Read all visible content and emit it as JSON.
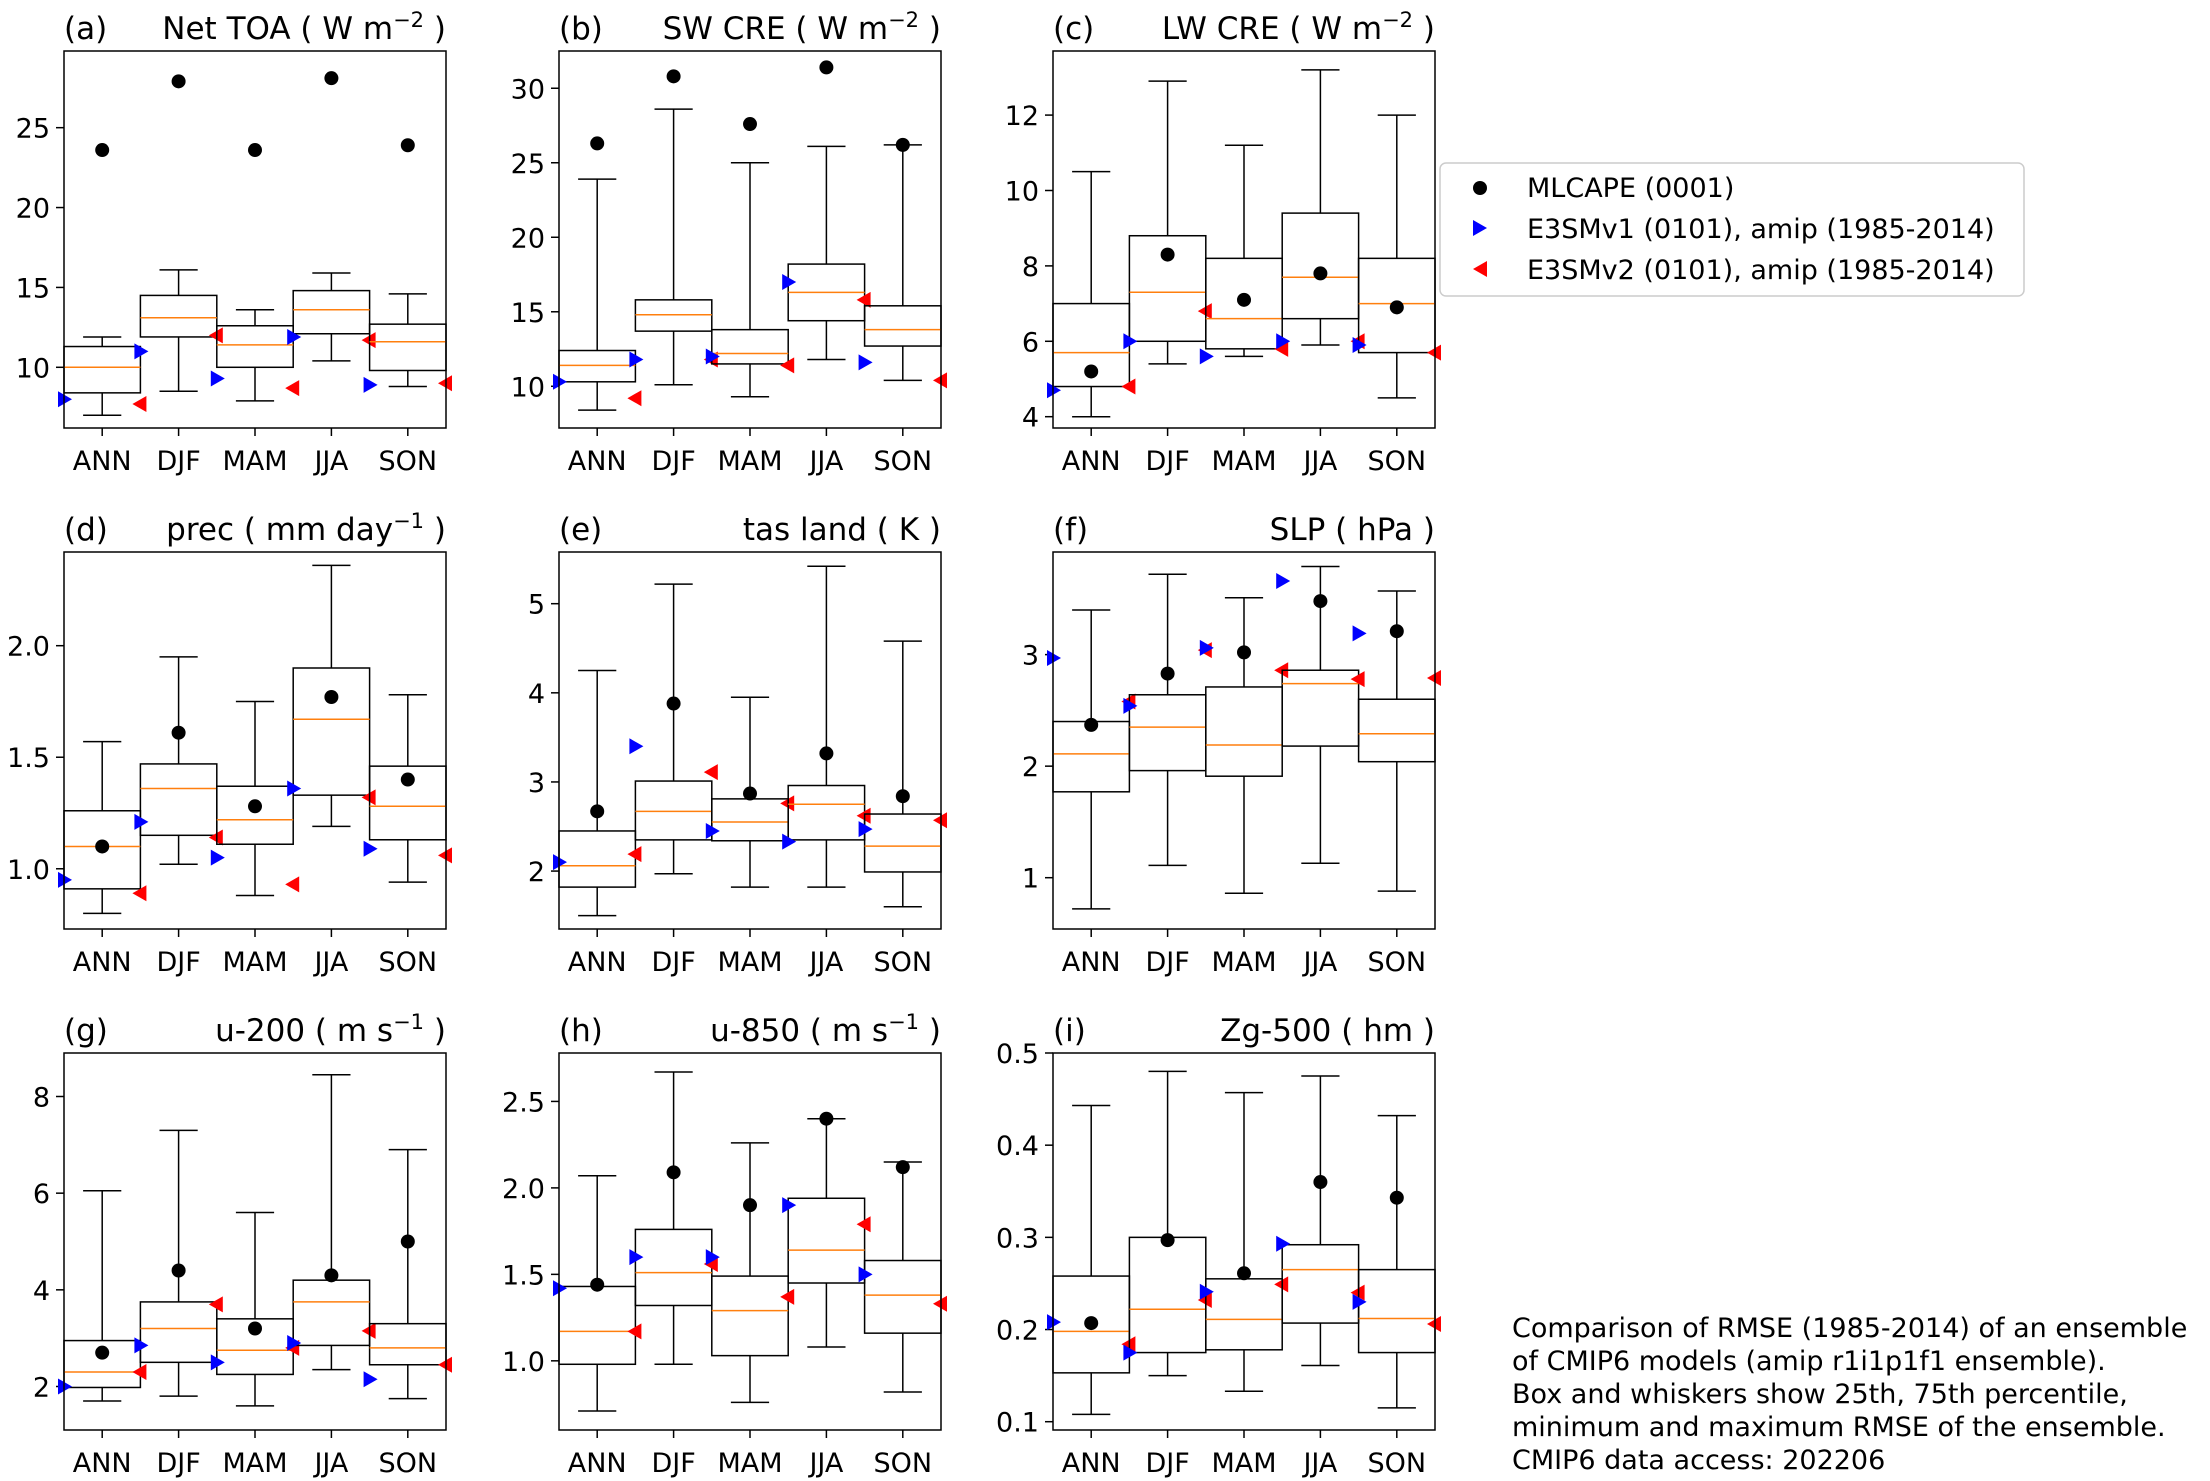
{
  "colors": {
    "mlcape": "#000000",
    "v1": "#0000ff",
    "v2": "#ff0000",
    "median": "#ff7f0e",
    "box": "#000000"
  },
  "legend": {
    "position": "right",
    "entries": [
      {
        "label": "MLCAPE (0001)",
        "marker": "circle",
        "color": "#000000"
      },
      {
        "label": "E3SMv1 (0101), amip (1985-2014)",
        "marker": "triangle-right",
        "color": "#0000ff"
      },
      {
        "label": "E3SMv2 (0101), amip (1985-2014)",
        "marker": "triangle-left",
        "color": "#ff0000"
      }
    ]
  },
  "note": [
    "Comparison of RMSE (1985-2014) of an ensemble",
    "of CMIP6 models (amip r1i1p1f1 ensemble).",
    "Box and whiskers show 25th, 75th percentile,",
    "minimum and maximum RMSE of the ensemble.",
    "CMIP6 data access: 202206"
  ],
  "chart_data": [
    {
      "type": "box",
      "letter": "(a)",
      "name": "Net TOA",
      "unit": "W m",
      "exp": "−2",
      "ylim": [
        6.2,
        29.8
      ],
      "yticks": [
        10,
        15,
        20,
        25
      ],
      "tickfmt": 0,
      "categories": [
        "ANN",
        "DJF",
        "MAM",
        "JJA",
        "SON"
      ],
      "box": [
        [
          7.0,
          8.4,
          10.0,
          11.3,
          11.9
        ],
        [
          8.5,
          11.9,
          13.1,
          14.5,
          16.1
        ],
        [
          7.9,
          10.0,
          11.4,
          12.6,
          13.6
        ],
        [
          10.4,
          12.1,
          13.6,
          14.8,
          15.9
        ],
        [
          8.8,
          9.8,
          11.6,
          12.7,
          14.6
        ]
      ],
      "mlcape": [
        23.6,
        27.9,
        23.6,
        28.1,
        23.9
      ],
      "v1": [
        8.0,
        11.0,
        9.3,
        11.9,
        8.9
      ],
      "v2": [
        7.7,
        12.0,
        8.7,
        11.7,
        9.0
      ]
    },
    {
      "type": "box",
      "letter": "(b)",
      "name": "SW CRE",
      "unit": "W m",
      "exp": "−2",
      "ylim": [
        7.2,
        32.5
      ],
      "yticks": [
        10,
        15,
        20,
        25,
        30
      ],
      "tickfmt": 0,
      "categories": [
        "ANN",
        "DJF",
        "MAM",
        "JJA",
        "SON"
      ],
      "box": [
        [
          8.4,
          10.3,
          11.4,
          12.4,
          23.9
        ],
        [
          10.1,
          13.7,
          14.8,
          15.8,
          28.6
        ],
        [
          9.3,
          11.5,
          12.2,
          13.8,
          25.0
        ],
        [
          11.8,
          14.4,
          16.3,
          18.2,
          26.1
        ],
        [
          10.4,
          12.7,
          13.8,
          15.4,
          26.2
        ]
      ],
      "mlcape": [
        26.3,
        30.8,
        27.6,
        31.4,
        26.2
      ],
      "v1": [
        10.3,
        11.8,
        12.0,
        17.0,
        11.6
      ],
      "v2": [
        9.2,
        11.8,
        11.4,
        15.8,
        10.4
      ]
    },
    {
      "type": "box",
      "letter": "(c)",
      "name": "LW CRE",
      "unit": "W m",
      "exp": "−2",
      "ylim": [
        3.7,
        13.7
      ],
      "yticks": [
        4,
        6,
        8,
        10,
        12
      ],
      "tickfmt": 0,
      "categories": [
        "ANN",
        "DJF",
        "MAM",
        "JJA",
        "SON"
      ],
      "box": [
        [
          4.0,
          4.8,
          5.7,
          7.0,
          10.5
        ],
        [
          5.4,
          6.0,
          7.3,
          8.8,
          12.9
        ],
        [
          5.6,
          5.8,
          6.6,
          8.2,
          11.2
        ],
        [
          5.9,
          6.6,
          7.7,
          9.4,
          13.2
        ],
        [
          4.5,
          5.7,
          7.0,
          8.2,
          12.0
        ]
      ],
      "mlcape": [
        5.2,
        8.3,
        7.1,
        7.8,
        6.9
      ],
      "v1": [
        4.7,
        6.0,
        5.6,
        6.0,
        5.9
      ],
      "v2": [
        4.8,
        6.8,
        5.8,
        6.0,
        5.7
      ]
    },
    {
      "type": "box",
      "letter": "(d)",
      "name": "prec",
      "unit": "mm day",
      "exp": "−1",
      "ylim": [
        0.73,
        2.42
      ],
      "yticks": [
        1.0,
        1.5,
        2.0
      ],
      "tickfmt": 1,
      "categories": [
        "ANN",
        "DJF",
        "MAM",
        "JJA",
        "SON"
      ],
      "box": [
        [
          0.8,
          0.91,
          1.1,
          1.26,
          1.57
        ],
        [
          1.02,
          1.15,
          1.36,
          1.47,
          1.95
        ],
        [
          0.88,
          1.11,
          1.22,
          1.37,
          1.75
        ],
        [
          1.19,
          1.33,
          1.67,
          1.9,
          2.36
        ],
        [
          0.94,
          1.13,
          1.28,
          1.46,
          1.78
        ]
      ],
      "mlcape": [
        1.1,
        1.61,
        1.28,
        1.77,
        1.4
      ],
      "v1": [
        0.95,
        1.21,
        1.05,
        1.36,
        1.09
      ],
      "v2": [
        0.89,
        1.14,
        0.93,
        1.32,
        1.06
      ]
    },
    {
      "type": "box",
      "letter": "(e)",
      "name": "tas land",
      "unit": "K",
      "exp": "",
      "ylim": [
        1.35,
        5.58
      ],
      "yticks": [
        2,
        3,
        4,
        5
      ],
      "tickfmt": 0,
      "categories": [
        "ANN",
        "DJF",
        "MAM",
        "JJA",
        "SON"
      ],
      "box": [
        [
          1.5,
          1.82,
          2.06,
          2.45,
          4.25
        ],
        [
          1.97,
          2.35,
          2.67,
          3.01,
          5.22
        ],
        [
          1.82,
          2.34,
          2.55,
          2.81,
          3.95
        ],
        [
          1.82,
          2.35,
          2.75,
          2.96,
          5.42
        ],
        [
          1.6,
          1.99,
          2.28,
          2.64,
          4.58
        ]
      ],
      "mlcape": [
        2.67,
        3.88,
        2.87,
        3.32,
        2.84
      ],
      "v1": [
        2.1,
        3.4,
        2.45,
        2.33,
        2.47
      ],
      "v2": [
        2.19,
        3.11,
        2.76,
        2.62,
        2.57
      ]
    },
    {
      "type": "box",
      "letter": "(f)",
      "name": "SLP",
      "unit": "hPa",
      "exp": "",
      "ylim": [
        0.54,
        3.92
      ],
      "yticks": [
        1,
        2,
        3
      ],
      "tickfmt": 0,
      "categories": [
        "ANN",
        "DJF",
        "MAM",
        "JJA",
        "SON"
      ],
      "box": [
        [
          0.72,
          1.77,
          2.11,
          2.4,
          3.4
        ],
        [
          1.11,
          1.96,
          2.35,
          2.64,
          3.72
        ],
        [
          0.86,
          1.91,
          2.19,
          2.71,
          3.51
        ],
        [
          1.13,
          2.18,
          2.74,
          2.86,
          3.79
        ],
        [
          0.88,
          2.04,
          2.29,
          2.6,
          3.57
        ]
      ],
      "mlcape": [
        2.37,
        2.83,
        3.02,
        3.48,
        3.21
      ],
      "v1": [
        2.97,
        2.54,
        3.06,
        3.66,
        3.19
      ],
      "v2": [
        2.58,
        3.04,
        2.86,
        2.78,
        2.79
      ]
    },
    {
      "type": "box",
      "letter": "(g)",
      "name": "u-200",
      "unit": "m s",
      "exp": "−1",
      "ylim": [
        1.1,
        8.9
      ],
      "yticks": [
        2,
        4,
        6,
        8
      ],
      "tickfmt": 0,
      "categories": [
        "ANN",
        "DJF",
        "MAM",
        "JJA",
        "SON"
      ],
      "box": [
        [
          1.7,
          1.98,
          2.3,
          2.95,
          6.05
        ],
        [
          1.8,
          2.5,
          3.2,
          3.75,
          7.3
        ],
        [
          1.6,
          2.25,
          2.75,
          3.4,
          5.6
        ],
        [
          2.35,
          2.85,
          3.75,
          4.2,
          8.45
        ],
        [
          1.75,
          2.45,
          2.8,
          3.3,
          6.9
        ]
      ],
      "mlcape": [
        2.7,
        4.4,
        3.2,
        4.3,
        5.0
      ],
      "v1": [
        2.0,
        2.85,
        2.5,
        2.9,
        2.15
      ],
      "v2": [
        2.3,
        3.7,
        2.8,
        3.15,
        2.45
      ]
    },
    {
      "type": "box",
      "letter": "(h)",
      "name": "u-850",
      "unit": "m s",
      "exp": "−1",
      "ylim": [
        0.6,
        2.78
      ],
      "yticks": [
        1.0,
        1.5,
        2.0,
        2.5
      ],
      "tickfmt": 1,
      "categories": [
        "ANN",
        "DJF",
        "MAM",
        "JJA",
        "SON"
      ],
      "box": [
        [
          0.71,
          0.98,
          1.17,
          1.43,
          2.07
        ],
        [
          0.98,
          1.32,
          1.51,
          1.76,
          2.67
        ],
        [
          0.76,
          1.03,
          1.29,
          1.49,
          2.26
        ],
        [
          1.08,
          1.45,
          1.64,
          1.94,
          2.4
        ],
        [
          0.82,
          1.16,
          1.38,
          1.58,
          2.15
        ]
      ],
      "mlcape": [
        1.44,
        2.09,
        1.9,
        2.4,
        2.12
      ],
      "v1": [
        1.42,
        1.6,
        1.6,
        1.9,
        1.5
      ],
      "v2": [
        1.17,
        1.56,
        1.37,
        1.79,
        1.33
      ]
    },
    {
      "type": "box",
      "letter": "(i)",
      "name": "Zg-500",
      "unit": "hm",
      "exp": "",
      "ylim": [
        0.091,
        0.5
      ],
      "yticks": [
        0.1,
        0.2,
        0.3,
        0.4,
        0.5
      ],
      "tickfmt": 1,
      "categories": [
        "ANN",
        "DJF",
        "MAM",
        "JJA",
        "SON"
      ],
      "box": [
        [
          0.108,
          0.153,
          0.198,
          0.258,
          0.443
        ],
        [
          0.15,
          0.175,
          0.222,
          0.3,
          0.48
        ],
        [
          0.133,
          0.178,
          0.211,
          0.255,
          0.457
        ],
        [
          0.161,
          0.207,
          0.265,
          0.292,
          0.475
        ],
        [
          0.115,
          0.175,
          0.212,
          0.265,
          0.432
        ]
      ],
      "mlcape": [
        0.207,
        0.297,
        0.261,
        0.36,
        0.343
      ],
      "v1": [
        0.208,
        0.175,
        0.241,
        0.293,
        0.23
      ],
      "v2": [
        0.184,
        0.232,
        0.249,
        0.24,
        0.206
      ]
    }
  ]
}
